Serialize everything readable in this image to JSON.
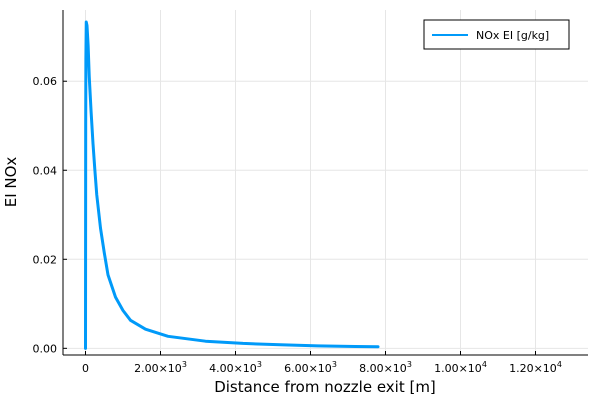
{
  "chart_data": {
    "type": "line",
    "title": "",
    "xlabel": "Distance from nozzle exit [m]",
    "ylabel": "EI NOx",
    "xlim": [
      -600,
      13400
    ],
    "ylim": [
      -0.0015,
      0.076
    ],
    "grid": true,
    "legend_position": "top-right",
    "x_ticks": [
      {
        "value": 0,
        "mantissa": "0",
        "exponent": ""
      },
      {
        "value": 2000,
        "mantissa": "2.00×10",
        "exponent": "3"
      },
      {
        "value": 4000,
        "mantissa": "4.00×10",
        "exponent": "3"
      },
      {
        "value": 6000,
        "mantissa": "6.00×10",
        "exponent": "3"
      },
      {
        "value": 8000,
        "mantissa": "8.00×10",
        "exponent": "3"
      },
      {
        "value": 10000,
        "mantissa": "1.00×10",
        "exponent": "4"
      },
      {
        "value": 12000,
        "mantissa": "1.20×10",
        "exponent": "4"
      }
    ],
    "y_ticks": [
      {
        "value": 0.0,
        "label": "0.00"
      },
      {
        "value": 0.02,
        "label": "0.02"
      },
      {
        "value": 0.04,
        "label": "0.04"
      },
      {
        "value": 0.06,
        "label": "0.06"
      }
    ],
    "series": [
      {
        "name": "NOx EI [g/kg]",
        "color": "#009af9",
        "x": [
          0,
          2,
          5,
          10,
          20,
          40,
          70,
          100,
          150,
          200,
          250,
          300,
          400,
          500,
          600,
          800,
          1000,
          1200,
          1600,
          2200,
          3200,
          4200,
          5200,
          6200,
          7200,
          7800
        ],
        "y": [
          0.0,
          0.02,
          0.05,
          0.065,
          0.0733,
          0.0725,
          0.068,
          0.061,
          0.053,
          0.046,
          0.04,
          0.0345,
          0.027,
          0.0215,
          0.0165,
          0.0115,
          0.0085,
          0.0063,
          0.0043,
          0.0027,
          0.0016,
          0.0011,
          0.0008,
          0.00055,
          0.0004,
          0.00035
        ]
      }
    ]
  }
}
